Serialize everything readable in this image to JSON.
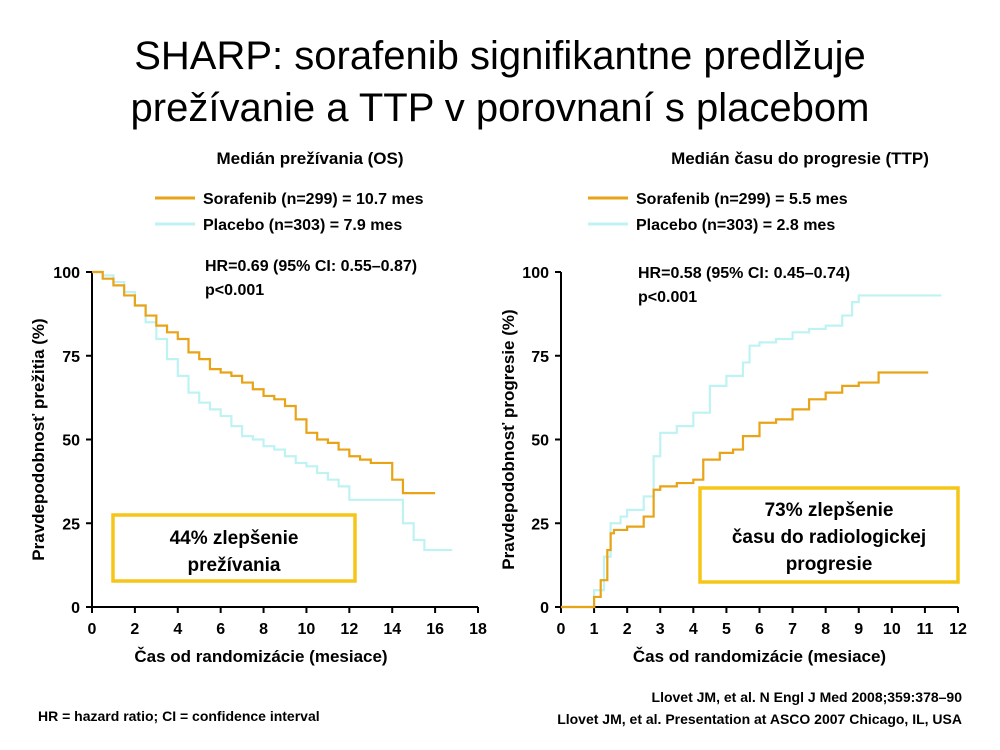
{
  "title": {
    "line1": "SHARP: sorafenib signifikantne predlžuje",
    "line2": "prežívanie a TTP v porovnaní s placebom"
  },
  "colors": {
    "sorafenib": "#E8A317",
    "placebo": "#BFF3F3",
    "box_border": "#F5C518",
    "axis": "#000000"
  },
  "footer": {
    "abbrev": "HR = hazard ratio; CI = confidence interval",
    "ref1": "Llovet JM, et al. N Engl J Med 2008;359:378–90",
    "ref2": "Llovet JM, et al. Presentation at ASCO 2007 Chicago, IL, USA"
  },
  "chart_data": [
    {
      "type": "line",
      "title": "Medián prežívania (OS)",
      "xlabel": "Čas od randomizácie (mesiace)",
      "ylabel": "Pravdepodobnosť prežitia (%)",
      "xlim": [
        0,
        18
      ],
      "ylim": [
        0,
        100
      ],
      "xticks": [
        0,
        2,
        4,
        6,
        8,
        10,
        12,
        14,
        16,
        18
      ],
      "yticks": [
        0,
        25,
        50,
        75,
        100
      ],
      "legend": [
        "Sorafenib (n=299) = 10.7 mes",
        "Placebo (n=303) = 7.9 mes"
      ],
      "hr_text": "HR=0.69 (95% CI: 0.55–0.87)",
      "p_text": "p<0.001",
      "callout": [
        "44% zlepšenie",
        "prežívania"
      ],
      "series": [
        {
          "name": "Sorafenib",
          "color_key": "sorafenib",
          "x": [
            0,
            0.5,
            1,
            1.5,
            2,
            2.5,
            3,
            3.5,
            4,
            4.5,
            5,
            5.5,
            6,
            6.5,
            7,
            7.5,
            8,
            8.5,
            9,
            9.5,
            10,
            10.5,
            11,
            11.5,
            12,
            12.5,
            13,
            13.5,
            14,
            14.5,
            15,
            15.5,
            16
          ],
          "y": [
            100,
            98,
            96,
            93,
            90,
            87,
            84,
            82,
            80,
            76,
            74,
            71,
            70,
            69,
            67,
            65,
            63,
            62,
            60,
            56,
            52,
            50,
            49,
            47,
            45,
            44,
            43,
            43,
            38,
            34,
            34,
            34,
            34
          ]
        },
        {
          "name": "Placebo",
          "color_key": "placebo",
          "x": [
            0,
            0.5,
            1,
            1.5,
            2,
            2.5,
            3,
            3.5,
            4,
            4.5,
            5,
            5.5,
            6,
            6.5,
            7,
            7.5,
            8,
            8.5,
            9,
            9.5,
            10,
            10.5,
            11,
            11.5,
            12,
            12.5,
            13,
            13.5,
            14,
            14.5,
            15,
            15.5,
            16,
            16.8
          ],
          "y": [
            100,
            99,
            97,
            94,
            90,
            85,
            80,
            74,
            69,
            64,
            61,
            59,
            57,
            54,
            51,
            50,
            48,
            47,
            45,
            43,
            42,
            40,
            38,
            36,
            32,
            32,
            32,
            32,
            32,
            25,
            20,
            17,
            17,
            17
          ]
        }
      ]
    },
    {
      "type": "line",
      "title": "Medián času do progresie (TTP)",
      "xlabel": "Čas od randomizácie (mesiace)",
      "ylabel": "Pravdepodobnosť progresie (%)",
      "xlim": [
        0,
        12
      ],
      "ylim": [
        0,
        100
      ],
      "xticks": [
        0,
        1,
        2,
        3,
        4,
        5,
        6,
        7,
        8,
        9,
        10,
        11,
        12
      ],
      "yticks": [
        0,
        25,
        50,
        75,
        100
      ],
      "legend": [
        "Sorafenib (n=299) = 5.5 mes",
        "Placebo (n=303) = 2.8 mes"
      ],
      "hr_text": "HR=0.58 (95% CI: 0.45–0.74)",
      "p_text": "p<0.001",
      "callout": [
        "73% zlepšenie",
        "času do radiologickej",
        "progresie"
      ],
      "series": [
        {
          "name": "Sorafenib",
          "color_key": "sorafenib",
          "x": [
            0,
            0.7,
            1.0,
            1.2,
            1.4,
            1.5,
            1.6,
            2.0,
            2.5,
            2.8,
            3.0,
            3.5,
            4.0,
            4.3,
            4.8,
            5.2,
            5.5,
            6.0,
            6.5,
            7.0,
            7.5,
            8.0,
            8.5,
            9.0,
            9.6,
            10.5,
            11.1
          ],
          "y": [
            0,
            0,
            3,
            8,
            17,
            22,
            23,
            24,
            27,
            35,
            36,
            37,
            38,
            44,
            46,
            47,
            51,
            55,
            56,
            59,
            62,
            64,
            66,
            67,
            70,
            70,
            70
          ]
        },
        {
          "name": "Placebo",
          "color_key": "placebo",
          "x": [
            0,
            0.7,
            1.0,
            1.3,
            1.5,
            1.8,
            2.0,
            2.5,
            2.8,
            3.0,
            3.5,
            4.0,
            4.5,
            5.0,
            5.5,
            5.7,
            6.0,
            6.5,
            7.0,
            7.5,
            8.0,
            8.5,
            8.8,
            9.0,
            10.0,
            11.0,
            11.5
          ],
          "y": [
            0,
            0,
            5,
            15,
            25,
            27,
            29,
            33,
            45,
            52,
            54,
            58,
            66,
            69,
            73,
            78,
            79,
            80,
            82,
            83,
            84,
            87,
            91,
            93,
            93,
            93,
            93
          ]
        }
      ]
    }
  ]
}
